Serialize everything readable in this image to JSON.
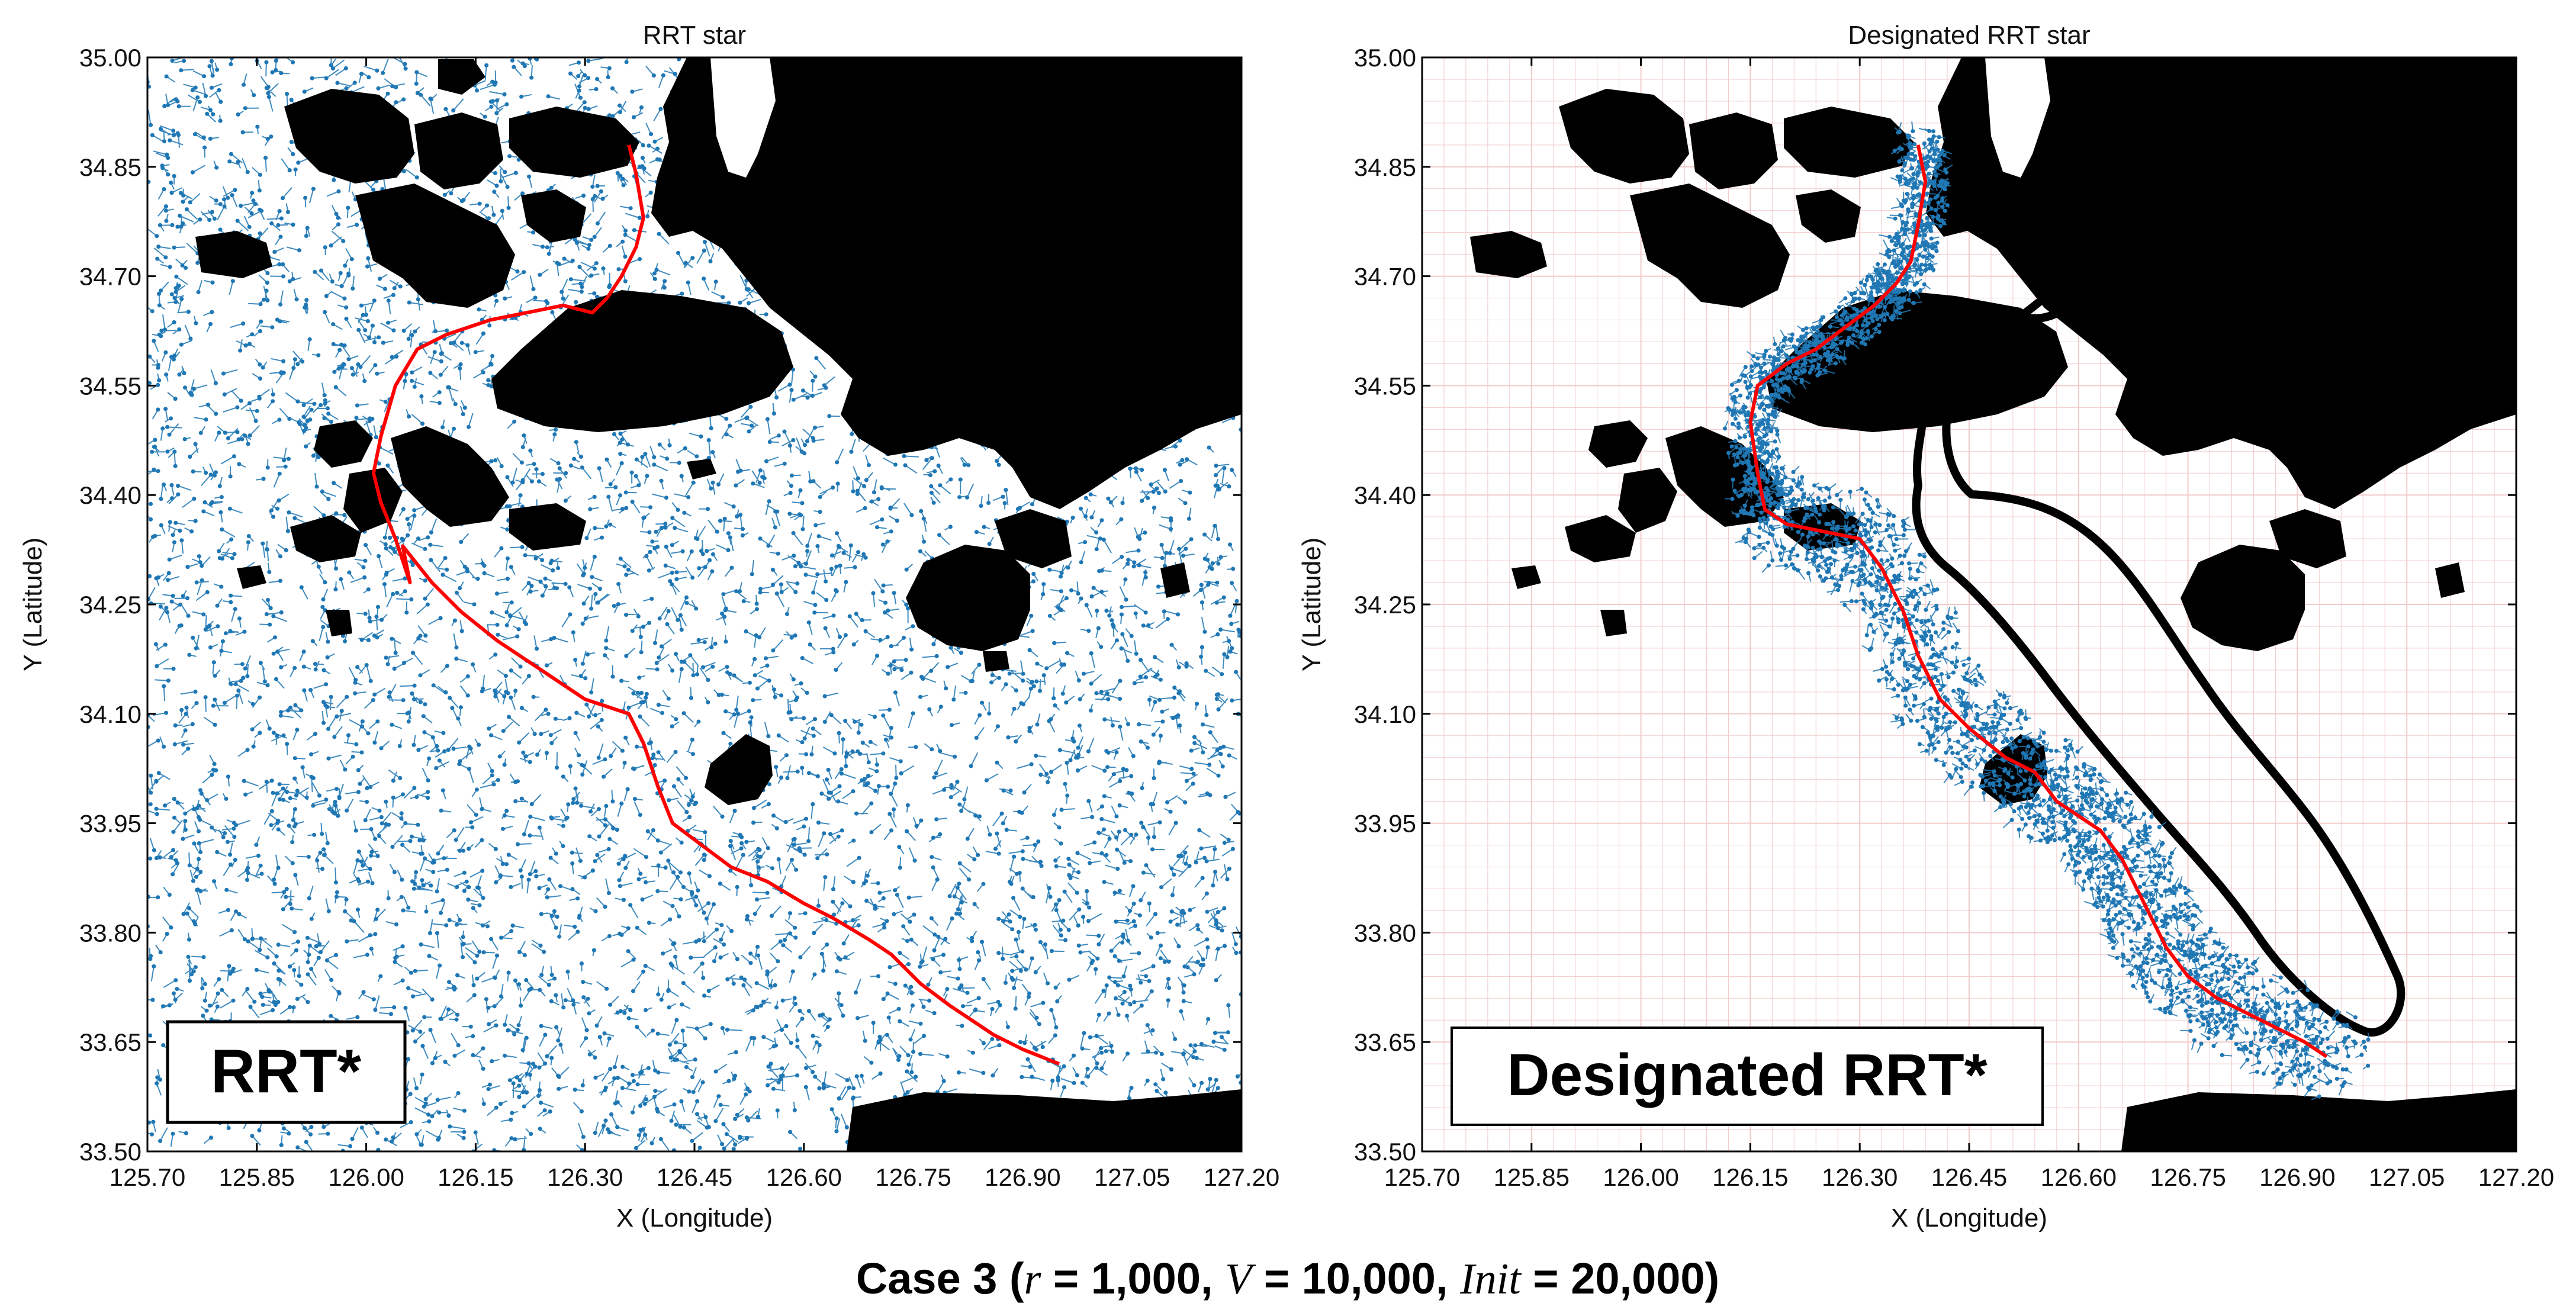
{
  "chart_data": [
    {
      "type": "scatter",
      "title": "RRT star",
      "xlabel": "X (Longitude)",
      "ylabel": "Y (Latitude)",
      "xlim": [
        125.7,
        127.2
      ],
      "ylim": [
        33.5,
        35.0
      ],
      "xticks": [
        "125.70",
        "125.85",
        "126.00",
        "126.15",
        "126.30",
        "126.45",
        "126.60",
        "126.75",
        "126.90",
        "127.05",
        "127.20"
      ],
      "yticks": [
        "33.50",
        "33.65",
        "33.80",
        "33.95",
        "34.10",
        "34.25",
        "34.40",
        "34.55",
        "34.70",
        "34.85",
        "35.00"
      ],
      "grid": false,
      "label_box": "RRT*",
      "colors": {
        "tree": "#1f77b4",
        "path": "#ff0000",
        "obstacle": "#000000"
      },
      "path": {
        "x": [
          126.36,
          126.37,
          126.38,
          126.37,
          126.35,
          126.33,
          126.31,
          126.27,
          126.22,
          126.17,
          126.11,
          126.07,
          126.04,
          126.02,
          126.01,
          126.02,
          126.04,
          126.06,
          126.05,
          126.09,
          126.13,
          126.18,
          126.24,
          126.3,
          126.36,
          126.38,
          126.4,
          126.42,
          126.46,
          126.5,
          126.55,
          126.6,
          126.64,
          126.69,
          126.72,
          126.76,
          126.8,
          126.83,
          126.86,
          126.9,
          126.95
        ],
        "y": [
          34.88,
          34.84,
          34.78,
          34.74,
          34.7,
          34.67,
          34.65,
          34.66,
          34.65,
          34.64,
          34.62,
          34.6,
          34.55,
          34.48,
          34.43,
          34.39,
          34.34,
          34.28,
          34.33,
          34.28,
          34.24,
          34.2,
          34.16,
          34.12,
          34.1,
          34.06,
          34.0,
          33.95,
          33.92,
          33.89,
          33.87,
          33.84,
          33.82,
          33.79,
          33.77,
          33.73,
          33.7,
          33.68,
          33.66,
          33.64,
          33.62
        ]
      }
    },
    {
      "type": "scatter",
      "title": "Designated RRT star",
      "xlabel": "X (Longitude)",
      "ylabel": "Y (Latitude)",
      "xlim": [
        125.7,
        127.2
      ],
      "ylim": [
        33.5,
        35.0
      ],
      "xticks": [
        "125.70",
        "125.85",
        "126.00",
        "126.15",
        "126.30",
        "126.45",
        "126.60",
        "126.75",
        "126.90",
        "127.05",
        "127.20"
      ],
      "yticks": [
        "33.50",
        "33.65",
        "33.80",
        "33.95",
        "34.10",
        "34.25",
        "34.40",
        "34.55",
        "34.70",
        "34.85",
        "35.00"
      ],
      "grid": true,
      "label_box": "Designated RRT*",
      "colors": {
        "tree": "#1f77b4",
        "path": "#ff0000",
        "obstacle": "#000000",
        "grid": "#f2caca"
      },
      "path": {
        "x": [
          126.38,
          126.39,
          126.38,
          126.37,
          126.35,
          126.32,
          126.28,
          126.24,
          126.2,
          126.16,
          126.15,
          126.16,
          126.17,
          126.2,
          126.25,
          126.3,
          126.33,
          126.36,
          126.38,
          126.41,
          126.45,
          126.5,
          126.54,
          126.57,
          126.6,
          126.63,
          126.66,
          126.68,
          126.7,
          126.72,
          126.75,
          126.79,
          126.83,
          126.87,
          126.91,
          126.94
        ],
        "y": [
          34.88,
          34.83,
          34.77,
          34.72,
          34.69,
          34.66,
          34.63,
          34.6,
          34.58,
          34.55,
          34.5,
          34.43,
          34.38,
          34.36,
          34.35,
          34.34,
          34.3,
          34.24,
          34.18,
          34.12,
          34.08,
          34.04,
          34.02,
          33.98,
          33.96,
          33.94,
          33.9,
          33.86,
          33.82,
          33.78,
          33.74,
          33.71,
          33.69,
          33.67,
          33.65,
          33.63
        ]
      }
    }
  ],
  "caption": {
    "lead": "Case 3 (",
    "var_r": "r",
    "part_r": " = 1,000, ",
    "var_v": "V",
    "part_v": " = 10,000, ",
    "var_init": "Init",
    "part_init": " = 20,000)"
  }
}
